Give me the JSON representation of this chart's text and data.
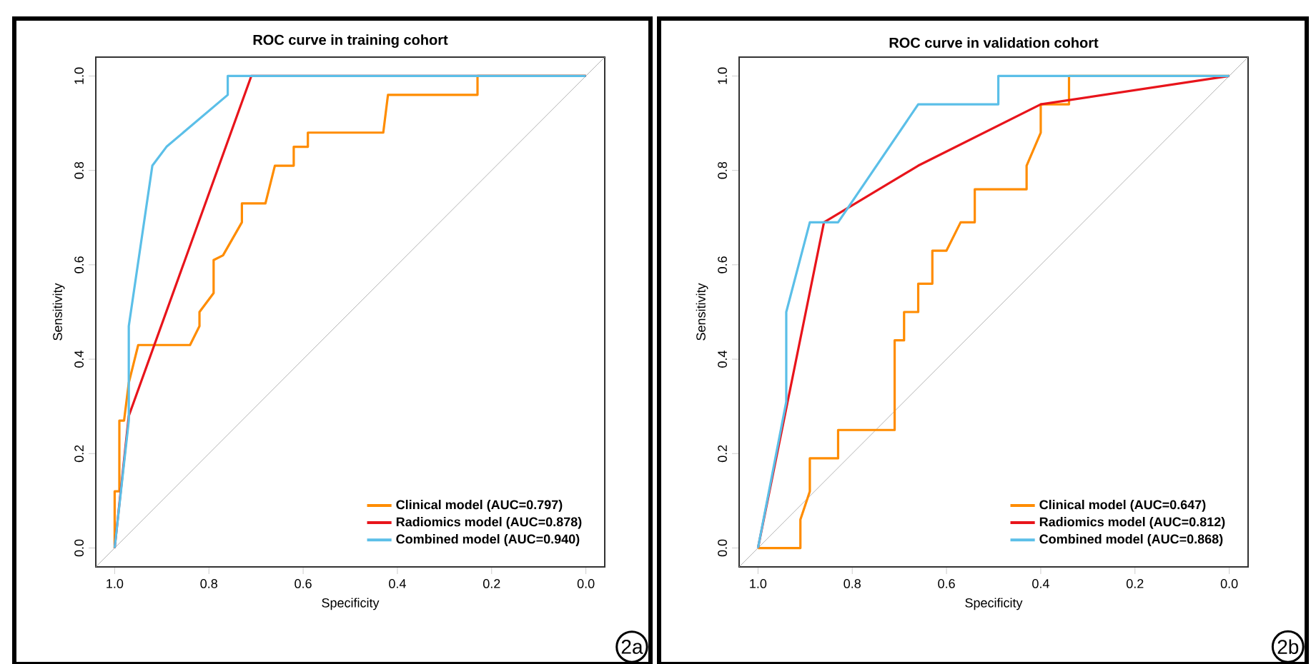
{
  "chart_data": [
    {
      "type": "line",
      "title": "ROC curve in training cohort",
      "xlabel": "Specificity",
      "ylabel": "Sensitivity",
      "xlim": [
        1.04,
        -0.04
      ],
      "ylim": [
        -0.04,
        1.04
      ],
      "xticks": [
        {
          "value": 1.0,
          "label": "1.0"
        },
        {
          "value": 0.8,
          "label": "0.8"
        },
        {
          "value": 0.6,
          "label": "0.6"
        },
        {
          "value": 0.4,
          "label": "0.4"
        },
        {
          "value": 0.2,
          "label": "0.2"
        },
        {
          "value": 0.0,
          "label": "0.0"
        }
      ],
      "yticks": [
        {
          "value": 0.0,
          "label": "0.0"
        },
        {
          "value": 0.2,
          "label": "0.2"
        },
        {
          "value": 0.4,
          "label": "0.4"
        },
        {
          "value": 0.6,
          "label": "0.6"
        },
        {
          "value": 0.8,
          "label": "0.8"
        },
        {
          "value": 1.0,
          "label": "1.0"
        }
      ],
      "legend": "bottom right",
      "annotations": [
        "2a"
      ],
      "series": [
        {
          "color": "#b4b4b4",
          "x": [
            1.04,
            -0.04
          ],
          "values": [
            -0.04,
            1.04
          ]
        },
        {
          "name": "Clinical model (AUC=0.797)",
          "color": "#ff8c00",
          "x": [
            1.0,
            1.0,
            0.99,
            0.99,
            0.98,
            0.97,
            0.95,
            0.84,
            0.82,
            0.82,
            0.79,
            0.79,
            0.77,
            0.73,
            0.73,
            0.68,
            0.66,
            0.62,
            0.62,
            0.59,
            0.59,
            0.43,
            0.42,
            0.23,
            0.23,
            0.0
          ],
          "values": [
            0.0,
            0.12,
            0.12,
            0.27,
            0.27,
            0.35,
            0.43,
            0.43,
            0.47,
            0.5,
            0.54,
            0.61,
            0.62,
            0.69,
            0.73,
            0.73,
            0.81,
            0.81,
            0.85,
            0.85,
            0.88,
            0.88,
            0.96,
            0.96,
            1.0,
            1.0
          ]
        },
        {
          "name": "Radiomics model (AUC=0.878)",
          "color": "#e8141b",
          "x": [
            1.0,
            0.97,
            0.71,
            0.0
          ],
          "values": [
            0.0,
            0.28,
            1.0,
            1.0
          ]
        },
        {
          "name": "Combined model (AUC=0.940)",
          "color": "#5bbfe8",
          "x": [
            1.0,
            0.97,
            0.97,
            0.92,
            0.89,
            0.76,
            0.76,
            0.0
          ],
          "values": [
            0.0,
            0.27,
            0.47,
            0.81,
            0.85,
            0.96,
            1.0,
            1.0
          ]
        }
      ]
    },
    {
      "type": "line",
      "title": "ROC curve in validation cohort",
      "xlabel": "Specificity",
      "ylabel": "Sensitivity",
      "xlim": [
        1.04,
        -0.04
      ],
      "ylim": [
        -0.04,
        1.04
      ],
      "xticks": [
        {
          "value": 1.0,
          "label": "1.0"
        },
        {
          "value": 0.8,
          "label": "0.8"
        },
        {
          "value": 0.6,
          "label": "0.6"
        },
        {
          "value": 0.4,
          "label": "0.4"
        },
        {
          "value": 0.2,
          "label": "0.2"
        },
        {
          "value": 0.0,
          "label": "0.0"
        }
      ],
      "yticks": [
        {
          "value": 0.0,
          "label": "0.0"
        },
        {
          "value": 0.2,
          "label": "0.2"
        },
        {
          "value": 0.4,
          "label": "0.4"
        },
        {
          "value": 0.6,
          "label": "0.6"
        },
        {
          "value": 0.8,
          "label": "0.8"
        },
        {
          "value": 1.0,
          "label": "1.0"
        }
      ],
      "legend": "bottom right",
      "annotations": [
        "2b"
      ],
      "series": [
        {
          "color": "#b4b4b4",
          "x": [
            1.04,
            -0.04
          ],
          "values": [
            -0.04,
            1.04
          ]
        },
        {
          "name": "Clinical model (AUC=0.647)",
          "color": "#ff8c00",
          "x": [
            1.0,
            0.91,
            0.91,
            0.89,
            0.89,
            0.83,
            0.83,
            0.71,
            0.71,
            0.69,
            0.69,
            0.66,
            0.66,
            0.63,
            0.63,
            0.6,
            0.57,
            0.54,
            0.54,
            0.43,
            0.43,
            0.4,
            0.4,
            0.34,
            0.34,
            0.0
          ],
          "values": [
            0.0,
            0.0,
            0.06,
            0.12,
            0.19,
            0.19,
            0.25,
            0.25,
            0.44,
            0.44,
            0.5,
            0.5,
            0.56,
            0.56,
            0.63,
            0.63,
            0.69,
            0.69,
            0.76,
            0.76,
            0.81,
            0.88,
            0.94,
            0.94,
            1.0,
            1.0
          ]
        },
        {
          "name": "Radiomics model (AUC=0.812)",
          "color": "#e8141b",
          "x": [
            1.0,
            0.86,
            0.66,
            0.4,
            0.0
          ],
          "values": [
            0.0,
            0.69,
            0.81,
            0.94,
            1.0
          ]
        },
        {
          "name": "Combined model (AUC=0.868)",
          "color": "#5bbfe8",
          "x": [
            1.0,
            0.94,
            0.94,
            0.89,
            0.83,
            0.66,
            0.49,
            0.49,
            0.0
          ],
          "values": [
            0.0,
            0.31,
            0.5,
            0.69,
            0.69,
            0.94,
            0.94,
            1.0,
            1.0
          ]
        }
      ]
    }
  ]
}
